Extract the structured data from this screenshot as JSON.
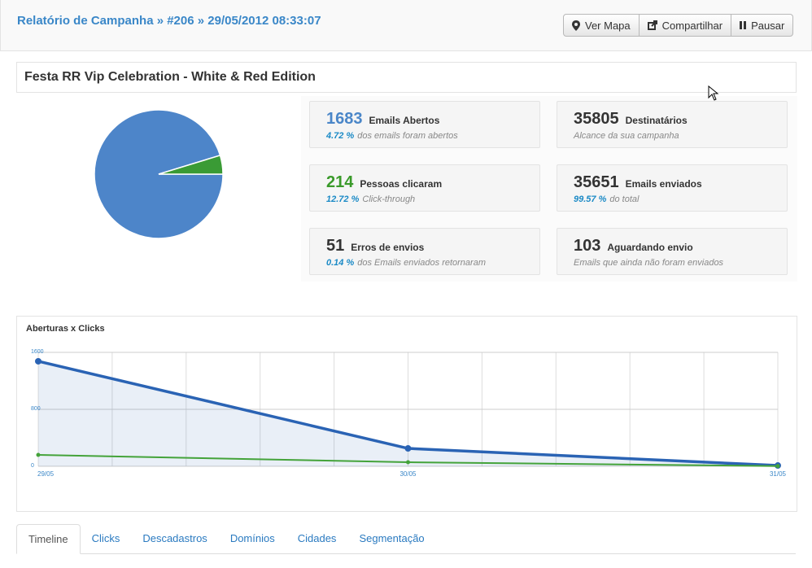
{
  "header": {
    "breadcrumb": "Relatório de Campanha » #206 » 29/05/2012 08:33:07",
    "buttons": [
      "Ver Mapa",
      "Compartilhar",
      "Pausar"
    ]
  },
  "campaign_title": "Festa RR Vip Celebration - White & Red Edition",
  "stats": [
    {
      "value": 1683,
      "label": "Emails Abertos",
      "percent": "4.72 %",
      "note": "dos emails foram abertos"
    },
    {
      "value": 35805,
      "label": "Destinatários",
      "note": "Alcance da sua campanha"
    },
    {
      "value": 214,
      "label": "Pessoas clicaram",
      "percent": "12.72 %",
      "note": "Click-through"
    },
    {
      "value": 35651,
      "label": "Emails enviados",
      "percent": "99.57 %",
      "note": "do total"
    },
    {
      "value": 51,
      "label": "Erros de envios",
      "percent": "0.14 %",
      "note": "dos Emails enviados retornaram"
    },
    {
      "value": 103,
      "label": "Aguardando envio",
      "note": "Emails que ainda não foram enviados"
    }
  ],
  "chart_data": [
    {
      "type": "pie",
      "values": [
        95.28,
        4.72
      ],
      "colors": [
        "#4d85c9",
        "#3a9b35"
      ]
    },
    {
      "type": "line",
      "title": "Aberturas x Clicks",
      "categories": [
        "29/05",
        "30/05",
        "31/05"
      ],
      "series": [
        {
          "color": "#2a63b4",
          "values": [
            1475,
            251,
            11
          ]
        },
        {
          "color": "#44a33a",
          "values": [
            160,
            57,
            3
          ]
        }
      ],
      "ylim": [
        0,
        1600
      ],
      "yticks": [
        0,
        800,
        1600
      ],
      "grid": true
    }
  ],
  "tabs": [
    "Timeline",
    "Clicks",
    "Descadastros",
    "Domínios",
    "Cidades",
    "Segmentação"
  ]
}
